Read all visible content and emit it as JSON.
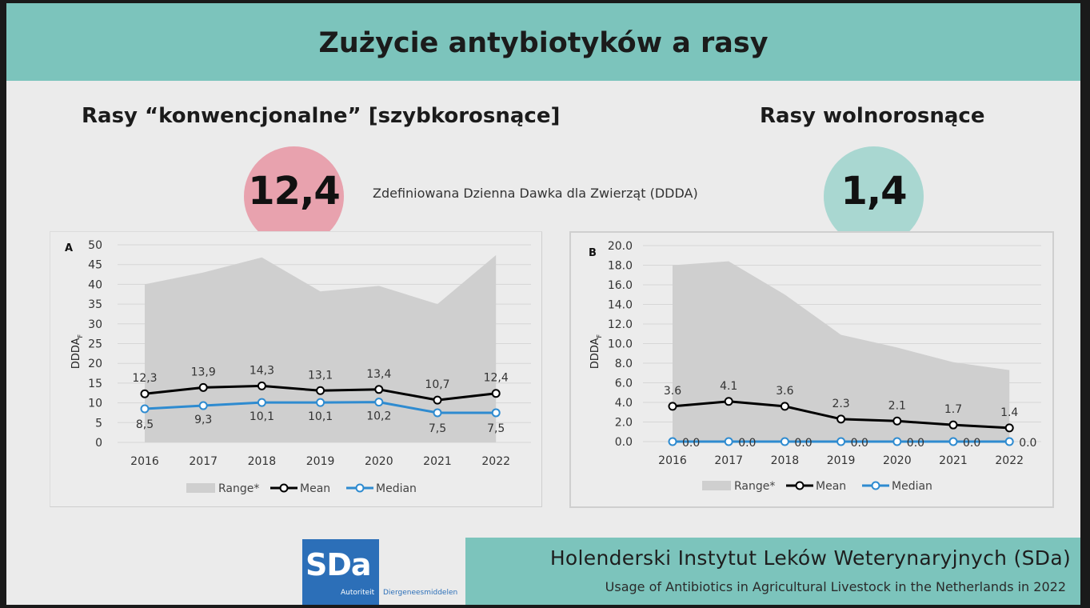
{
  "slide": {
    "title": "Zużycie antybiotyków a rasy",
    "left_section": {
      "title": "Rasy “konwencjonalne” [szybkorosnące]",
      "value": "12,4"
    },
    "right_section": {
      "title": "Rasy wolnorosnące",
      "value": "1,4"
    },
    "dose_label": "Zdefiniowana Dzienna Dawka dla Zwierząt (DDDA)",
    "footer": {
      "institute": "Holenderski Instytut Leków Weterynaryjnych (SDa)",
      "report": "Usage of Antibiotics in Agricultural Livestock in the Netherlands in 2022"
    },
    "logo": {
      "text": "SDa",
      "line1": "Autoriteit",
      "line2": "Diergeneesmiddelen"
    }
  },
  "colors": {
    "header_band": "#7cc4bc",
    "left_circle": "#e8a2ae",
    "right_circle": "#a9d7d1",
    "range_fill": "#cfcfcf",
    "mean_line": "#000000",
    "median_line": "#2e8bd0",
    "logo_blue": "#2c6fb8"
  },
  "chart_data": [
    {
      "type": "line",
      "panel_label": "A",
      "ylabel": "DDDA",
      "ylabel_subscript": "F",
      "ylim": [
        0,
        50
      ],
      "yticks": [
        "0",
        "5",
        "10",
        "15",
        "20",
        "25",
        "30",
        "35",
        "40",
        "45",
        "50"
      ],
      "categories": [
        "2016",
        "2017",
        "2018",
        "2019",
        "2020",
        "2021",
        "2022"
      ],
      "grid": true,
      "legend_position": "bottom",
      "range": {
        "name": "Range*",
        "values": [
          40.0,
          43.0,
          46.8,
          38.2,
          39.6,
          35.0,
          47.4
        ]
      },
      "series": [
        {
          "name": "Mean",
          "values": [
            12.3,
            13.9,
            14.3,
            13.1,
            13.4,
            10.7,
            12.4
          ],
          "labels": [
            "12,3",
            "13,9",
            "14,3",
            "13,1",
            "13,4",
            "10,7",
            "12,4"
          ]
        },
        {
          "name": "Median",
          "values": [
            8.5,
            9.3,
            10.1,
            10.1,
            10.2,
            7.5,
            7.5
          ],
          "labels": [
            "8,5",
            "9,3",
            "10,1",
            "10,1",
            "10,2",
            "7,5",
            "7,5"
          ]
        }
      ]
    },
    {
      "type": "line",
      "panel_label": "B",
      "ylabel": "DDDA",
      "ylabel_subscript": "F",
      "ylim": [
        0,
        20
      ],
      "yticks": [
        "0.0",
        "2.0",
        "4.0",
        "6.0",
        "8.0",
        "10.0",
        "12.0",
        "14.0",
        "16.0",
        "18.0",
        "20.0"
      ],
      "categories": [
        "2016",
        "2017",
        "2018",
        "2019",
        "2020",
        "2021",
        "2022"
      ],
      "grid": true,
      "legend_position": "bottom",
      "range": {
        "name": "Range*",
        "values": [
          18.0,
          18.4,
          15.0,
          10.9,
          9.6,
          8.1,
          7.3
        ]
      },
      "series": [
        {
          "name": "Mean",
          "values": [
            3.6,
            4.1,
            3.6,
            2.3,
            2.1,
            1.7,
            1.4
          ],
          "labels": [
            "3.6",
            "4.1",
            "3.6",
            "2.3",
            "2.1",
            "1.7",
            "1.4"
          ]
        },
        {
          "name": "Median",
          "values": [
            0.0,
            0.0,
            0.0,
            0.0,
            0.0,
            0.0,
            0.0
          ],
          "labels": [
            "0.0",
            "0.0",
            "0.0",
            "0.0",
            "0.0",
            "0.0",
            "0.0"
          ]
        }
      ]
    }
  ]
}
